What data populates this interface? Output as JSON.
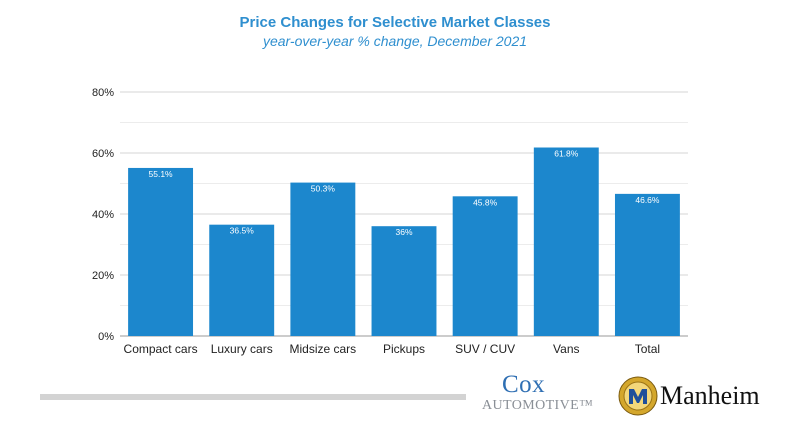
{
  "chart_data": {
    "type": "bar",
    "title": "Price Changes for Selective Market Classes",
    "subtitle": "year-over-year % change, December 2021",
    "categories": [
      "Compact cars",
      "Luxury cars",
      "Midsize cars",
      "Pickups",
      "SUV / CUV",
      "Vans",
      "Total"
    ],
    "values": [
      55.1,
      36.5,
      50.3,
      36,
      45.8,
      61.8,
      46.6
    ],
    "data_labels": [
      "55.1%",
      "36.5%",
      "50.3%",
      "36%",
      "45.8%",
      "61.8%",
      "46.6%"
    ],
    "yticks": [
      "0%",
      "20%",
      "40%",
      "60%",
      "80%"
    ],
    "ylim": [
      0,
      80
    ],
    "grid": true,
    "bar_color": "#1c87cd"
  },
  "footer": {
    "cox_logo": "Cox",
    "cox_logo_sub": "AUTOMOTIVE™",
    "manheim_logo": "Manheim"
  },
  "colors": {
    "title": "#2f8fcf",
    "grid_minor": "#ececec",
    "grid_major": "#d6d6d6"
  }
}
